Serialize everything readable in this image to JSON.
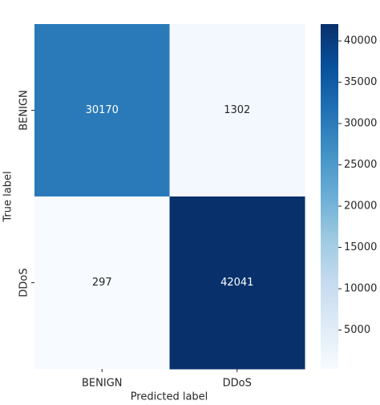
{
  "chart_data": {
    "type": "heatmap",
    "x_label": "Predicted label",
    "y_label": "True label",
    "x_categories": [
      "BENIGN",
      "DDoS"
    ],
    "y_categories": [
      "BENIGN",
      "DDoS"
    ],
    "values": [
      [
        30170,
        1302
      ],
      [
        297,
        42041
      ]
    ],
    "colormap": "Blues",
    "clim": [
      297,
      42041
    ],
    "cticks": [
      5000,
      10000,
      15000,
      20000,
      25000,
      30000,
      35000,
      40000
    ]
  }
}
